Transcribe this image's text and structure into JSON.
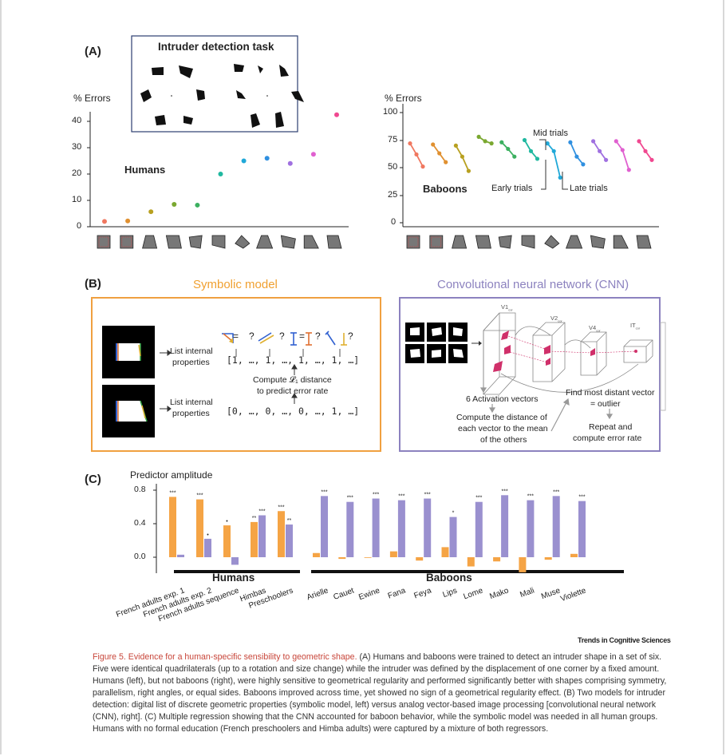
{
  "panelA": {
    "letter": "(A)",
    "task_title": "Intruder detection task",
    "humans": {
      "ylabel": "% Errors",
      "yticks": [
        "40",
        "30",
        "20",
        "10",
        "0"
      ],
      "label": "Humans",
      "values": [
        2,
        2.2,
        5.7,
        8.5,
        8.2,
        20,
        25,
        26,
        24,
        27.5,
        42.5
      ],
      "colors": [
        "#f07860",
        "#e09030",
        "#b8a020",
        "#7aa830",
        "#3cb060",
        "#20b8a0",
        "#20a8d8",
        "#3090e0",
        "#a070e0",
        "#e060d0",
        "#f04890"
      ]
    },
    "baboons": {
      "ylabel": "% Errors",
      "yticks": [
        "100",
        "75",
        "50",
        "25",
        "0"
      ],
      "label": "Baboons",
      "early_label": "Early trials",
      "mid_label": "Mid trials",
      "late_label": "Late trials",
      "early": [
        72,
        71,
        70,
        78,
        73,
        75,
        72,
        73,
        74,
        74,
        74
      ],
      "mid": [
        62,
        63,
        60,
        74,
        67,
        65,
        65,
        60,
        65,
        66,
        65
      ],
      "late": [
        51,
        55,
        47,
        72,
        60,
        58,
        41,
        53,
        57,
        48,
        57
      ]
    }
  },
  "panelB": {
    "letter": "(B)",
    "symbolic_title": "Symbolic model",
    "cnn_title": "Convolutional neural network (CNN)",
    "list_props_1": "List internal",
    "list_props_2": "properties",
    "vector1": "[1, …, 1, …, 1, …, 1, …]",
    "vector2": "[0, …, 0, …, 0, …, 1, …]",
    "compute_1": "Compute 𝓛₁ distance",
    "compute_2": "to predict error rate",
    "q1": "?",
    "q2": "?",
    "q3": "?",
    "q4": "?",
    "eq1": "=",
    "eq2": "=",
    "layers": [
      "V1",
      "V2",
      "V4",
      "IT"
    ],
    "layer_sub": "cor",
    "activation": "6 Activation vectors",
    "find1": "Find most distant vector",
    "find2": "= outlier",
    "distance1": "Compute the distance of",
    "distance2": "each vector to the mean",
    "distance3": "of the others",
    "repeat1": "Repeat and",
    "repeat2": "compute error rate"
  },
  "panelC": {
    "letter": "(C)",
    "ylabel": "Predictor amplitude",
    "yticks": [
      "0.8",
      "0.4",
      "0.0"
    ],
    "humans_label": "Humans",
    "baboons_label": "Baboons",
    "chart_data": {
      "type": "bar",
      "categories": [
        "French adults exp. 1",
        "French adults exp. 2",
        "French adults sequence",
        "Himbas",
        "Preschoolers",
        "Arielle",
        "Cauet",
        "Ewine",
        "Fana",
        "Feya",
        "Lips",
        "Lome",
        "Mako",
        "Mali",
        "Muse",
        "Violette"
      ],
      "series": [
        {
          "values": [
            0.72,
            0.69,
            0.38,
            0.42,
            0.55,
            0.05,
            -0.02,
            0.0,
            0.07,
            -0.04,
            0.12,
            -0.11,
            -0.05,
            -0.18,
            -0.03,
            0.04
          ],
          "color": "#f5a445"
        },
        {
          "values": [
            0.03,
            0.22,
            -0.09,
            0.5,
            0.39,
            0.73,
            0.66,
            0.7,
            0.68,
            0.7,
            0.48,
            0.66,
            0.74,
            0.68,
            0.73,
            0.67
          ],
          "color": "#9a90cf"
        }
      ],
      "sig_sym": [
        "***",
        "***",
        "•",
        "**",
        "***",
        "",
        "",
        "",
        "",
        "",
        "",
        "",
        "",
        "",
        "",
        ""
      ],
      "sig_cnn": [
        "",
        "•",
        "",
        "***",
        "**",
        "***",
        "***",
        "***",
        "***",
        "***",
        "*",
        "***",
        "***",
        "***",
        "***",
        "***"
      ],
      "ylim": [
        -0.2,
        0.85
      ]
    }
  },
  "brand": "Trends in Cognitive Sciences",
  "caption": {
    "title": "Figure 5. Evidence for a human-specific sensibility to geometric shape.",
    "body": " (A) Humans and baboons were trained to detect an intruder shape in a set of six. Five were identical quadrilaterals (up to a rotation and size change) while the intruder was defined by the displacement of one corner by a fixed amount. Humans (left), but not baboons (right), were highly sensitive to geometrical regularity and performed significantly better with shapes comprising symmetry, parallelism, right angles, or equal sides. Baboons improved across time, yet showed no sign of a geometrical regularity effect. (B) Two models for intruder detection: digital list of discrete geometric properties (symbolic model, left) versus analog vector-based image processing [convolutional neural network (CNN), right]. (C) Multiple regression showing that the CNN accounted for baboon behavior, while the symbolic model was needed in all human groups. Humans with no formal education (French preschoolers and Himba adults) were captured by a mixture of both regressors."
  }
}
